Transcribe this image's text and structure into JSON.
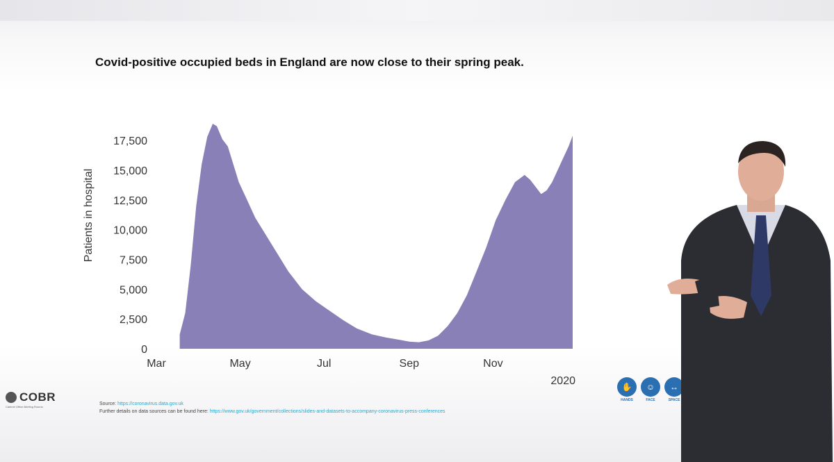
{
  "slide": {
    "title": "Covid-positive occupied beds in England are now close to their spring peak.",
    "source_label": "Source:",
    "source_link": "https://coronavirus.data.gov.uk",
    "details_label": "Further details on data sources can be found here:",
    "details_link": "https://www.gov.uk/government/collections/slides-and-datasets-to-accompany-coronavirus-press-conferences",
    "logo_text": "COBR",
    "logo_subtext": "Cabinet Office Briefing Rooms",
    "icons": [
      {
        "name": "hands-icon",
        "label": "HANDS"
      },
      {
        "name": "face-icon",
        "label": "FACE"
      },
      {
        "name": "space-icon",
        "label": "SPACE"
      }
    ],
    "colors": {
      "area": "#8a80b8",
      "icon": "#2b6fb3"
    }
  },
  "chart_data": {
    "type": "area",
    "title": "Covid-positive occupied beds in England are now close to their spring peak.",
    "ylabel": "Patients in hospital",
    "xlabel": "",
    "year_label": "2020",
    "ylim": [
      0,
      18500
    ],
    "yticks": [
      0,
      2500,
      5000,
      7500,
      10000,
      12500,
      15000,
      17500
    ],
    "ytick_labels": [
      "0",
      "2,500",
      "5,000",
      "7,500",
      "10,000",
      "12,500",
      "15,000",
      "17,500"
    ],
    "xlim": [
      "2020-03-01",
      "2020-12-31"
    ],
    "xticks": [
      "2020-03-01",
      "2020-05-01",
      "2020-07-01",
      "2020-09-01",
      "2020-11-01"
    ],
    "xtick_labels": [
      "Mar",
      "May",
      "Jul",
      "Sep",
      "Nov"
    ],
    "grid": false,
    "series": [
      {
        "values": [
          [
            "2020-03-18",
            1200
          ],
          [
            "2020-03-22",
            3000
          ],
          [
            "2020-03-26",
            7000
          ],
          [
            "2020-03-30",
            12000
          ],
          [
            "2020-04-03",
            15500
          ],
          [
            "2020-04-07",
            17800
          ],
          [
            "2020-04-11",
            18900
          ],
          [
            "2020-04-14",
            18700
          ],
          [
            "2020-04-18",
            17600
          ],
          [
            "2020-04-22",
            17000
          ],
          [
            "2020-04-26",
            15500
          ],
          [
            "2020-04-30",
            14000
          ],
          [
            "2020-05-06",
            12500
          ],
          [
            "2020-05-12",
            11000
          ],
          [
            "2020-05-20",
            9500
          ],
          [
            "2020-05-28",
            8000
          ],
          [
            "2020-06-05",
            6500
          ],
          [
            "2020-06-15",
            5000
          ],
          [
            "2020-06-25",
            4000
          ],
          [
            "2020-07-05",
            3200
          ],
          [
            "2020-07-15",
            2400
          ],
          [
            "2020-07-25",
            1700
          ],
          [
            "2020-08-05",
            1200
          ],
          [
            "2020-08-15",
            950
          ],
          [
            "2020-08-25",
            750
          ],
          [
            "2020-09-01",
            600
          ],
          [
            "2020-09-08",
            550
          ],
          [
            "2020-09-15",
            700
          ],
          [
            "2020-09-22",
            1100
          ],
          [
            "2020-09-29",
            1900
          ],
          [
            "2020-10-06",
            3000
          ],
          [
            "2020-10-13",
            4500
          ],
          [
            "2020-10-20",
            6500
          ],
          [
            "2020-10-27",
            8500
          ],
          [
            "2020-11-03",
            10800
          ],
          [
            "2020-11-10",
            12500
          ],
          [
            "2020-11-17",
            14000
          ],
          [
            "2020-11-24",
            14600
          ],
          [
            "2020-11-28",
            14200
          ],
          [
            "2020-12-02",
            13600
          ],
          [
            "2020-12-06",
            13000
          ],
          [
            "2020-12-10",
            13300
          ],
          [
            "2020-12-14",
            14000
          ],
          [
            "2020-12-18",
            15000
          ],
          [
            "2020-12-22",
            16000
          ],
          [
            "2020-12-26",
            17000
          ],
          [
            "2020-12-29",
            17900
          ]
        ]
      }
    ]
  }
}
